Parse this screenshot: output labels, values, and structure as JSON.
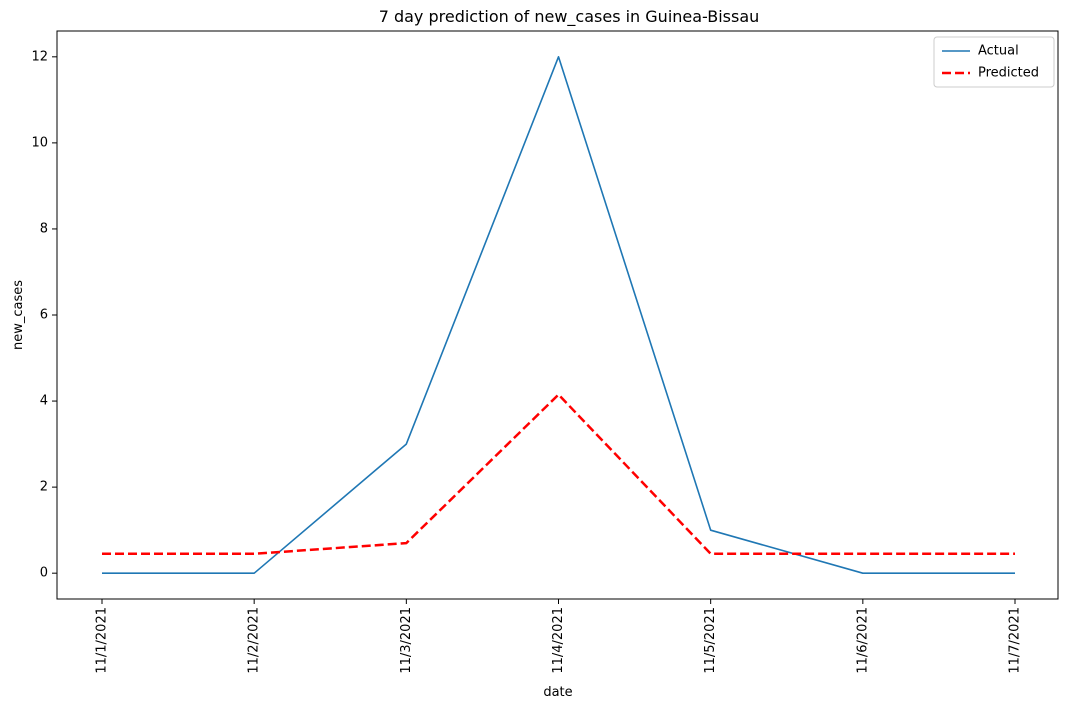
{
  "chart_data": {
    "type": "line",
    "title": "7 day prediction of new_cases in Guinea-Bissau",
    "xlabel": "date",
    "ylabel": "new_cases",
    "categories": [
      "11/1/2021",
      "11/2/2021",
      "11/3/2021",
      "11/4/2021",
      "11/5/2021",
      "11/6/2021",
      "11/7/2021"
    ],
    "yticks": [
      0,
      2,
      4,
      6,
      8,
      10,
      12
    ],
    "ylim": [
      -0.6,
      12.6
    ],
    "grid": false,
    "legend_position": "top-right",
    "series": [
      {
        "name": "Actual",
        "values": [
          0,
          0,
          3,
          12,
          1,
          0,
          0
        ],
        "color": "#1f77b4",
        "style": "solid"
      },
      {
        "name": "Predicted",
        "values": [
          0.45,
          0.45,
          0.7,
          4.15,
          0.45,
          0.45,
          0.45
        ],
        "color": "#ff0000",
        "style": "dashed"
      }
    ]
  }
}
